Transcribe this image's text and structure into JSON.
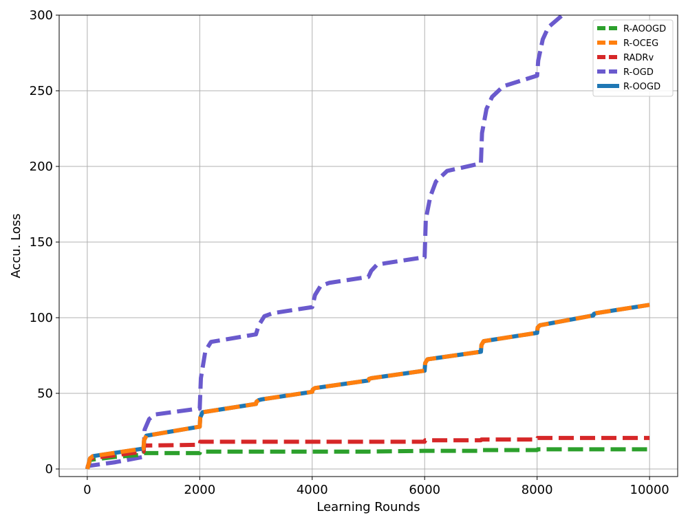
{
  "chart_data": {
    "type": "line",
    "title": "",
    "xlabel": "Learning Rounds",
    "ylabel": "Accu. Loss",
    "xlim": [
      -500,
      10500
    ],
    "ylim": [
      -5,
      300
    ],
    "xticks": [
      0,
      2000,
      4000,
      6000,
      8000,
      10000
    ],
    "xtick_labels": [
      "0",
      "2000",
      "4000",
      "6000",
      "8000",
      "10000"
    ],
    "yticks": [
      0,
      50,
      100,
      150,
      200,
      250,
      300
    ],
    "ytick_labels": [
      "0",
      "50",
      "100",
      "150",
      "200",
      "250",
      "300"
    ],
    "grid": true,
    "legend_position": "top-right",
    "series": [
      {
        "name": "R-OOGD",
        "color": "#1f77b4",
        "style": "solid",
        "x": [
          0,
          50,
          100,
          1000,
          1010,
          1050,
          2000,
          2010,
          2050,
          3000,
          3010,
          3050,
          3100,
          4000,
          4010,
          4050,
          5000,
          5010,
          5050,
          6000,
          6010,
          6050,
          7000,
          7010,
          7050,
          8000,
          8010,
          8050,
          9000,
          9010,
          9050,
          10000
        ],
        "y": [
          0,
          7,
          8.5,
          13.5,
          19,
          22,
          28,
          34,
          37.5,
          43,
          44.5,
          45.5,
          46,
          51,
          52.5,
          53.5,
          58.5,
          59.5,
          60,
          65,
          70,
          72.5,
          77.5,
          82,
          84.5,
          90,
          93.5,
          95,
          101.5,
          102.5,
          103,
          108.5
        ]
      },
      {
        "name": "R-OCEG",
        "color": "#ff7f0e",
        "style": "dashed",
        "x": [
          0,
          50,
          100,
          1000,
          1010,
          1050,
          2000,
          2010,
          2050,
          3000,
          3010,
          3050,
          3100,
          4000,
          4010,
          4050,
          5000,
          5010,
          5050,
          6000,
          6010,
          6050,
          7000,
          7010,
          7050,
          8000,
          8010,
          8050,
          9000,
          9010,
          9050,
          10000
        ],
        "y": [
          0,
          7,
          8.5,
          13.5,
          19,
          22,
          28,
          34,
          37.5,
          43,
          44.5,
          45.5,
          46,
          51,
          52.5,
          53.5,
          58.5,
          59.5,
          60,
          65,
          70,
          72.5,
          77.5,
          82,
          84.5,
          90,
          93.5,
          95,
          101.5,
          102.5,
          103,
          108.5
        ]
      },
      {
        "name": "RADRv",
        "color": "#d62728",
        "style": "dashed",
        "x": [
          0,
          50,
          1000,
          1010,
          2000,
          2010,
          3000,
          4000,
          5000,
          6000,
          6010,
          7000,
          7010,
          8000,
          8010,
          10000
        ],
        "y": [
          0,
          7,
          11.5,
          15.5,
          16,
          18,
          18,
          18,
          18,
          18,
          19,
          19,
          19.5,
          19.5,
          20.5,
          20.5
        ]
      },
      {
        "name": "R-OGD",
        "color": "#6a5acd",
        "style": "dashed",
        "x": [
          0,
          10,
          500,
          1000,
          1020,
          1100,
          1200,
          2000,
          2020,
          2100,
          2200,
          3000,
          3050,
          3150,
          3300,
          4000,
          4050,
          4150,
          4300,
          5000,
          5050,
          5150,
          5300,
          6000,
          6020,
          6100,
          6200,
          6400,
          7000,
          7020,
          7100,
          7200,
          7400,
          8000,
          8020,
          8100,
          8200,
          8450
        ],
        "y": [
          0,
          2,
          4.5,
          8,
          26,
          33,
          36,
          40,
          60,
          78,
          84,
          89,
          95,
          101,
          103,
          107,
          115,
          121,
          123,
          127,
          131,
          135,
          136,
          140,
          165,
          180,
          190,
          197,
          202,
          222,
          238,
          246,
          253,
          260,
          270,
          284,
          292,
          300
        ]
      },
      {
        "name": "R-AOOGD",
        "color": "#2ca02c",
        "style": "dashed",
        "x": [
          0,
          50,
          500,
          1000,
          1010,
          2000,
          2010,
          3000,
          4000,
          5000,
          6000,
          7000,
          7010,
          8000,
          8010,
          10000
        ],
        "y": [
          0,
          6,
          8,
          9.5,
          10.5,
          10.5,
          11.5,
          11.5,
          11.5,
          11.5,
          12,
          12,
          12.5,
          12.5,
          13,
          13
        ]
      }
    ],
    "legend_order": [
      "R-AOOGD",
      "R-OCEG",
      "RADRv",
      "R-OGD",
      "R-OOGD"
    ]
  }
}
